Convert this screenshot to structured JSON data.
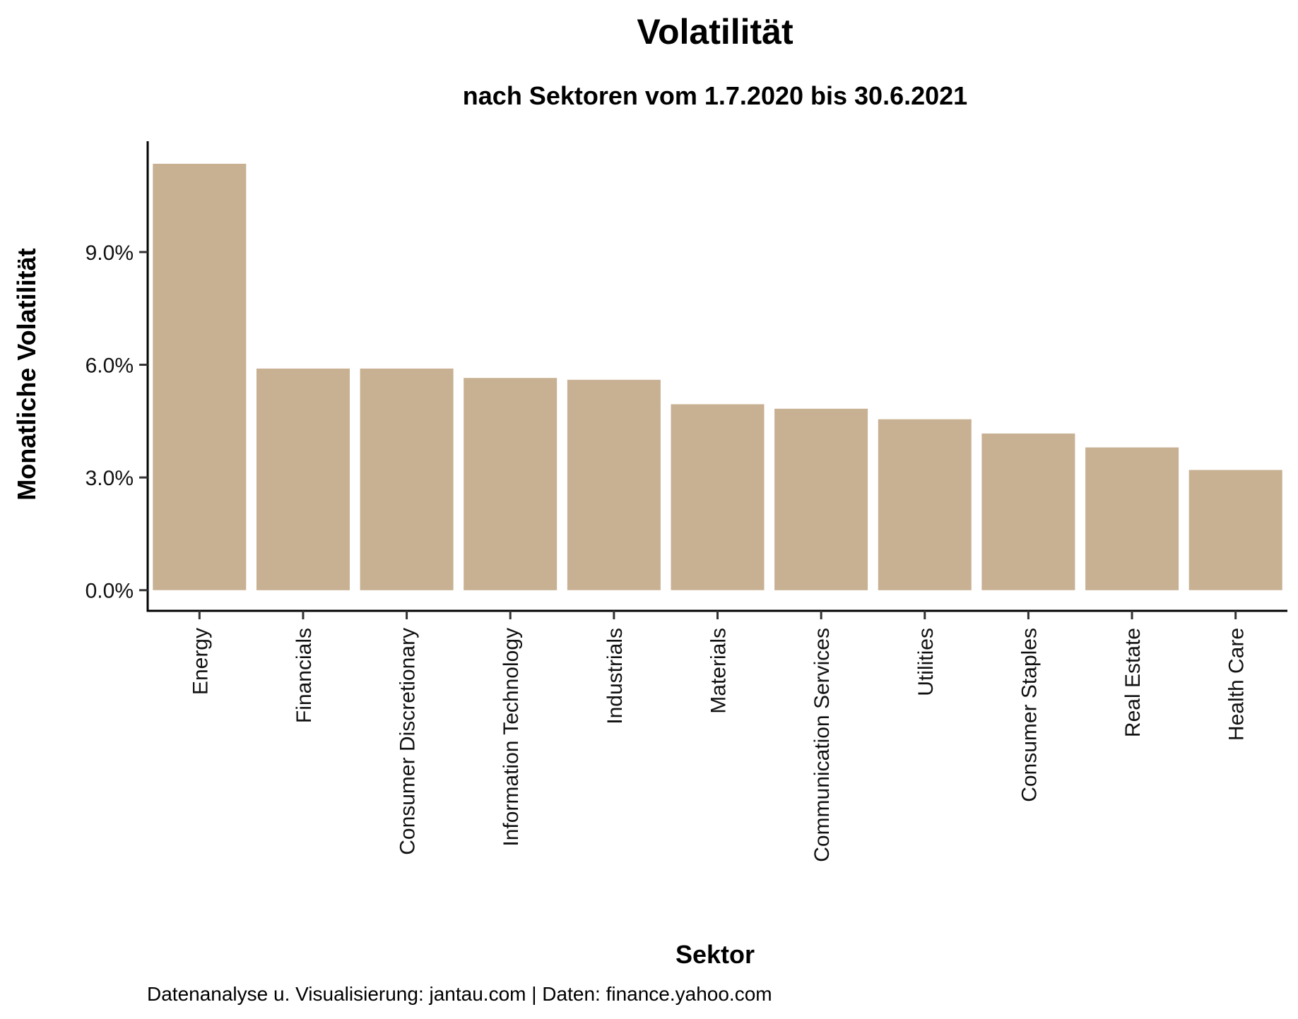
{
  "chart_data": {
    "type": "bar",
    "title": "Volatilität",
    "subtitle": "nach Sektoren vom 1.7.2020 bis 30.6.2021",
    "xlabel": "Sektor",
    "ylabel": "Monatliche Volatilität",
    "caption": "Datenanalyse u. Visualisierung: jantau.com | Daten: finance.yahoo.com",
    "categories": [
      "Energy",
      "Financials",
      "Consumer Discretionary",
      "Information Technology",
      "Industrials",
      "Materials",
      "Communication Services",
      "Utilities",
      "Consumer Staples",
      "Real Estate",
      "Health Care"
    ],
    "values": [
      11.35,
      5.9,
      5.9,
      5.65,
      5.6,
      4.95,
      4.83,
      4.55,
      4.17,
      3.8,
      3.2
    ],
    "value_unit": "%",
    "ylim": [
      -0.55,
      11.95
    ],
    "yticks": [
      0,
      3,
      6,
      9
    ],
    "ytick_labels": [
      "0.0%",
      "3.0%",
      "6.0%",
      "9.0%"
    ],
    "grid": false,
    "legend": "none",
    "bar_color": "#c8b093",
    "axis_color": "#000000",
    "background_color": "#ffffff"
  }
}
